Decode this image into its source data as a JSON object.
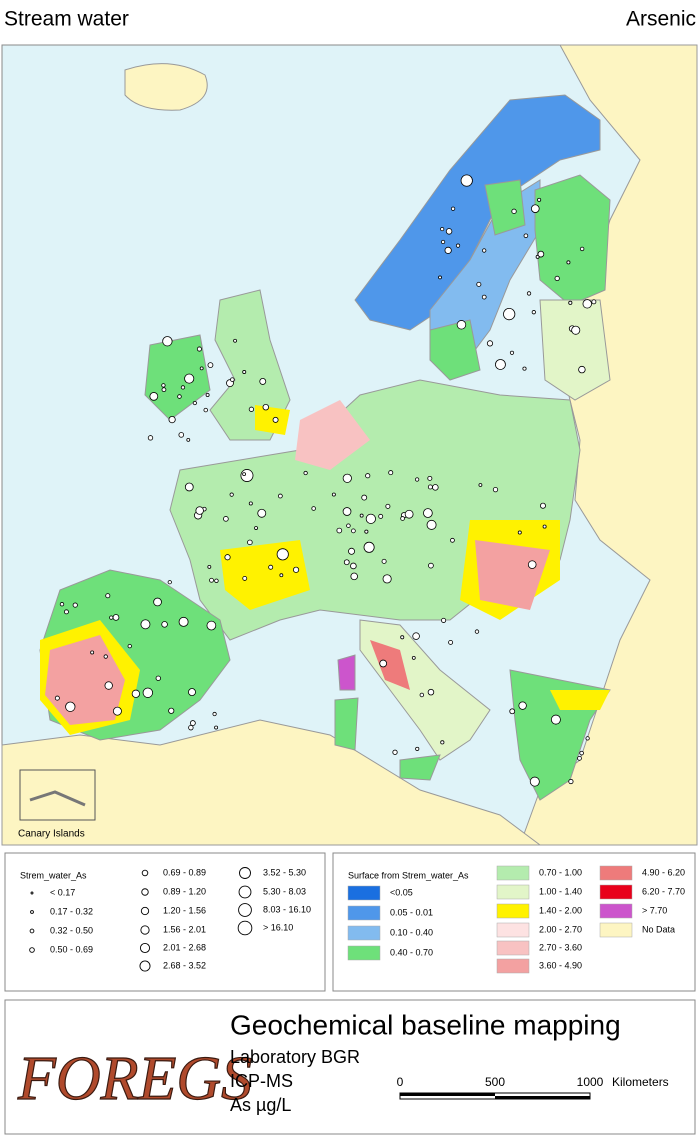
{
  "header": {
    "left": "Stream water",
    "right": "Arsenic"
  },
  "map": {
    "inset_label": "Canary Islands"
  },
  "legend_points": {
    "title": "Strem_water_As",
    "items": [
      "< 0.17",
      "0.17 - 0.32",
      "0.32 - 0.50",
      "0.50 - 0.69",
      "0.69 - 0.89",
      "0.89 - 1.20",
      "1.20 - 1.56",
      "1.56 - 2.01",
      "2.01 - 2.68",
      "2.68 - 3.52",
      "3.52 - 5.30",
      "5.30 - 8.03",
      "8.03 - 16.10",
      "> 16.10"
    ]
  },
  "legend_surface": {
    "title": "Surface from Strem_water_As",
    "items": [
      {
        "label": "<0.05",
        "color": "#1a6fe0"
      },
      {
        "label": "0.05 - 0.01",
        "color": "#4f97ea"
      },
      {
        "label": "0.10 - 0.40",
        "color": "#82bbef"
      },
      {
        "label": "0.40 - 0.70",
        "color": "#6ee07a"
      },
      {
        "label": "0.70 - 1.00",
        "color": "#b4ecae"
      },
      {
        "label": "1.00 - 1.40",
        "color": "#e2f5c8"
      },
      {
        "label": "1.40 - 2.00",
        "color": "#fff200"
      },
      {
        "label": "2.00 - 2.70",
        "color": "#fde2e2"
      },
      {
        "label": "2.70 - 3.60",
        "color": "#f8c2c2"
      },
      {
        "label": "3.60 - 4.90",
        "color": "#f3a1a1"
      },
      {
        "label": "4.90 - 6.20",
        "color": "#ee7b7b"
      },
      {
        "label": "6.20 - 7.70",
        "color": "#e8001b"
      },
      {
        "label": "> 7.70",
        "color": "#cc55cc"
      },
      {
        "label": "No Data",
        "color": "#fdf5c2"
      }
    ]
  },
  "footer": {
    "logo": "FOREGS",
    "title": "Geochemical baseline mapping",
    "lines": [
      "Laboratory BGR",
      "ICP-MS",
      "As µg/L"
    ],
    "scale_bar": {
      "ticks": [
        0,
        500,
        1000
      ],
      "unit": "Kilometers"
    }
  }
}
